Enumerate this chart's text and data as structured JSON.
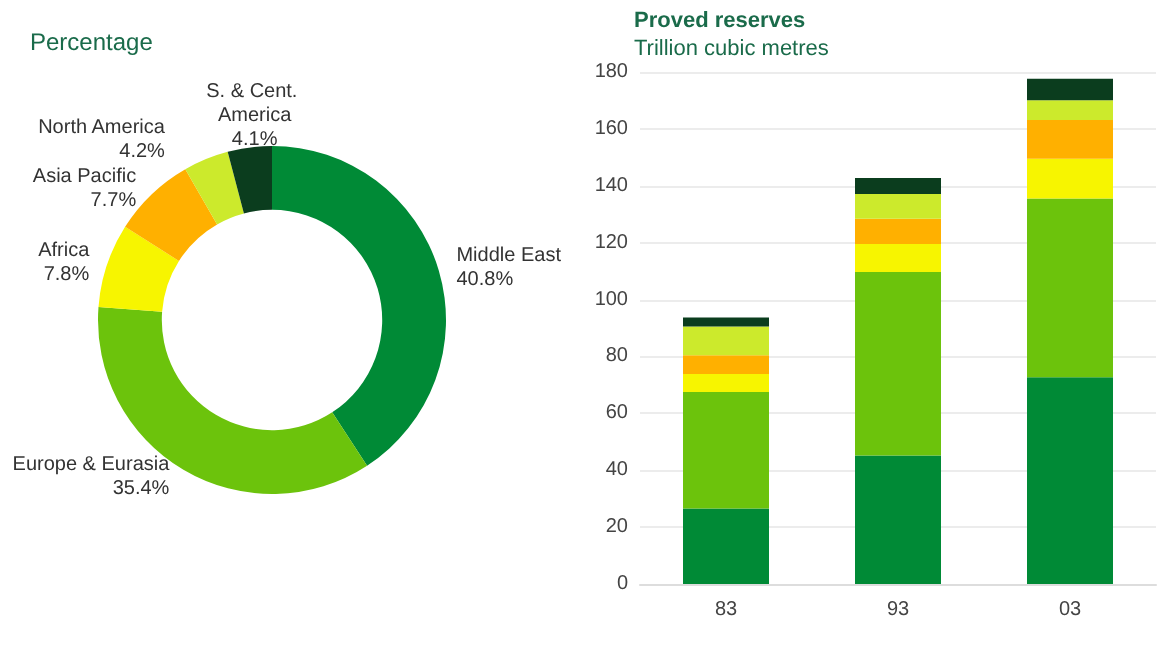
{
  "chart_data": [
    {
      "type": "donut",
      "title": "Percentage",
      "categories": [
        "Middle East",
        "Europe & Eurasia",
        "Africa",
        "Asia Pacific",
        "North America",
        "S. & Cent. America"
      ],
      "values": [
        40.8,
        35.4,
        7.8,
        7.7,
        4.2,
        4.1
      ],
      "value_labels": [
        "40.8%",
        "35.4%",
        "7.8%",
        "7.7%",
        "4.2%",
        "4.1%"
      ],
      "colors": [
        "#008a36",
        "#6cc30c",
        "#f7f500",
        "#ffb000",
        "#ccea2c",
        "#0b3d1e"
      ],
      "legend": false
    },
    {
      "type": "bar",
      "title": "Proved reserves",
      "subtitle": "Trillion cubic metres",
      "categories": [
        "83",
        "93",
        "03"
      ],
      "stacked": true,
      "series": [
        {
          "color": "#008a36",
          "values": [
            26.5,
            45.2,
            72.7
          ]
        },
        {
          "color": "#6cc30c",
          "values": [
            41,
            64.5,
            62.8
          ]
        },
        {
          "color": "#f7f500",
          "values": [
            6.3,
            9.8,
            14
          ]
        },
        {
          "color": "#ffb000",
          "values": [
            6.6,
            8.9,
            13.6
          ]
        },
        {
          "color": "#ccea2c",
          "values": [
            10.1,
            8.7,
            7
          ]
        },
        {
          "color": "#0b3d1e",
          "values": [
            3.2,
            5.6,
            7.5
          ]
        }
      ],
      "ylim": [
        0,
        180
      ],
      "yticks": [
        0,
        20,
        40,
        60,
        80,
        100,
        120,
        140,
        160,
        180
      ],
      "grid": "y",
      "legend": false
    }
  ]
}
